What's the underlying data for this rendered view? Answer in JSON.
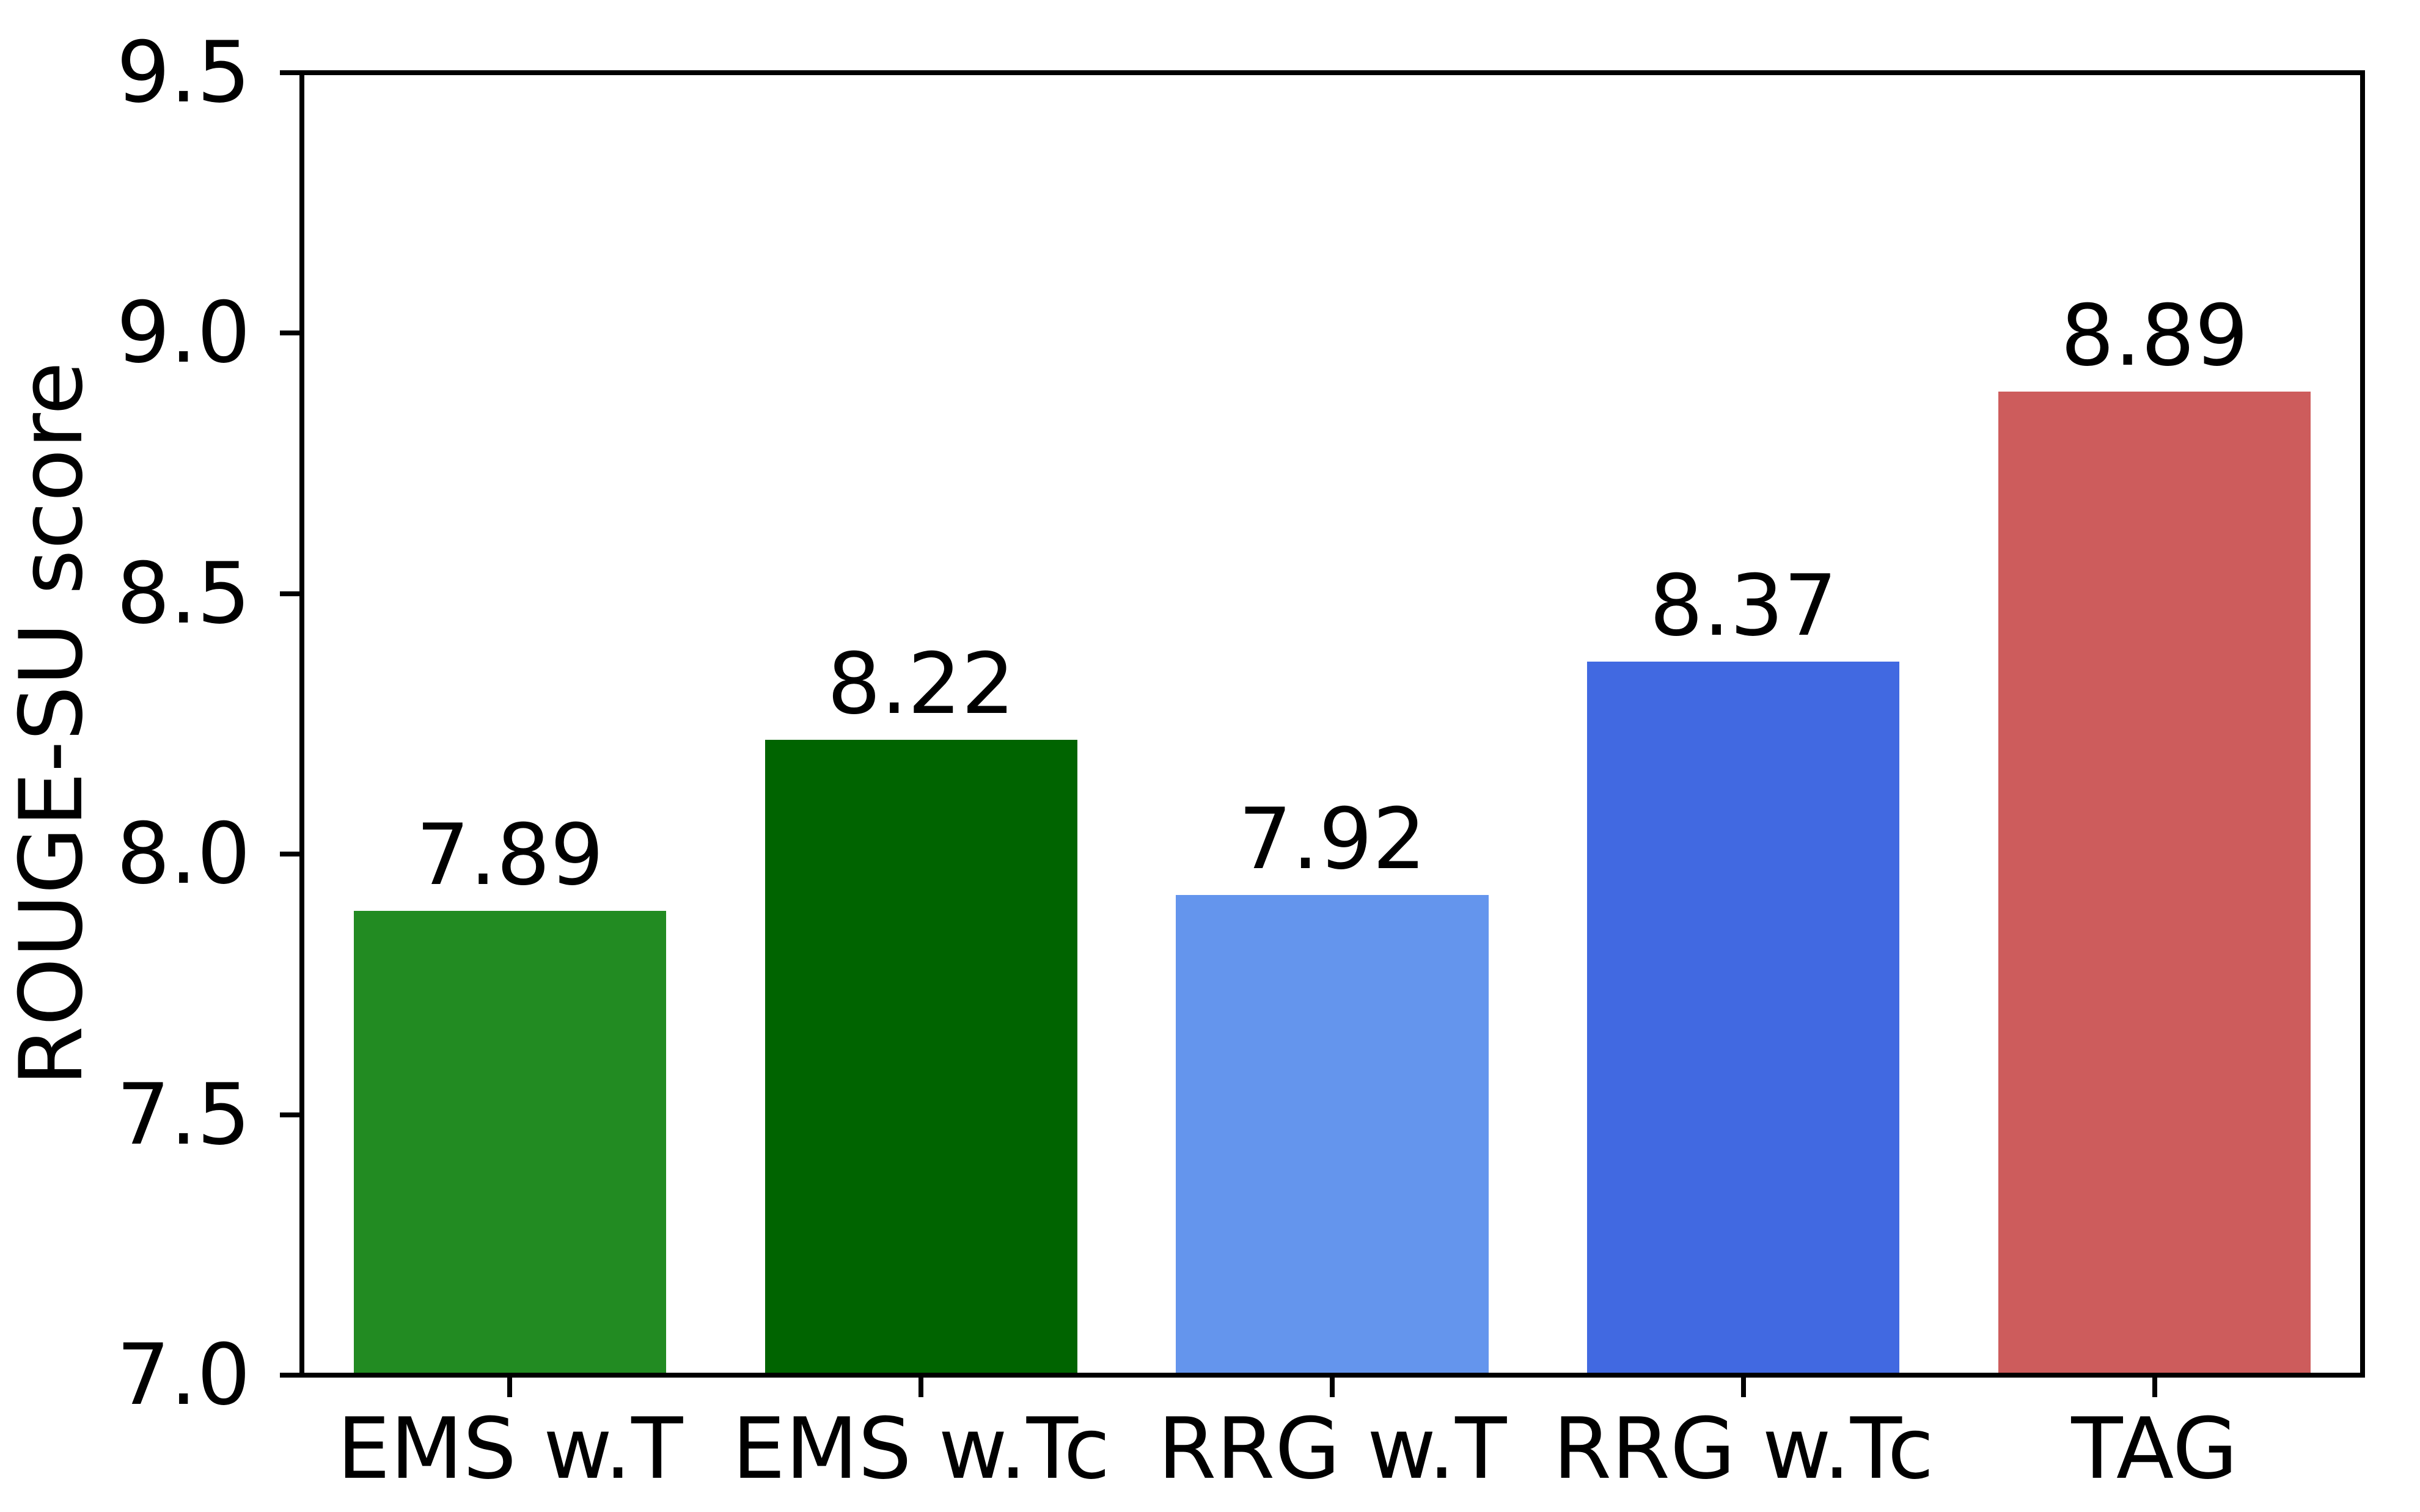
{
  "chart_data": {
    "type": "bar",
    "title": "",
    "xlabel": "",
    "ylabel": "ROUGE-SU score",
    "categories": [
      "EMS w.T",
      "EMS w.Tc",
      "RRG w.T",
      "RRG w.Tc",
      "TAG"
    ],
    "values": [
      7.89,
      8.22,
      7.92,
      8.37,
      8.89
    ],
    "value_labels": [
      "7.89",
      "8.22",
      "7.92",
      "8.37",
      "8.89"
    ],
    "bar_colors": [
      "#228B22",
      "#006400",
      "#6495ED",
      "#4169E1",
      "#CD5C5C"
    ],
    "ylim": [
      7.0,
      9.5
    ],
    "yticks": [
      "7.0",
      "7.5",
      "8.0",
      "8.5",
      "9.0",
      "9.5"
    ],
    "grid": false,
    "legend": null,
    "frame": "full-box",
    "axis_color": "#000000",
    "background_color": "#ffffff"
  }
}
